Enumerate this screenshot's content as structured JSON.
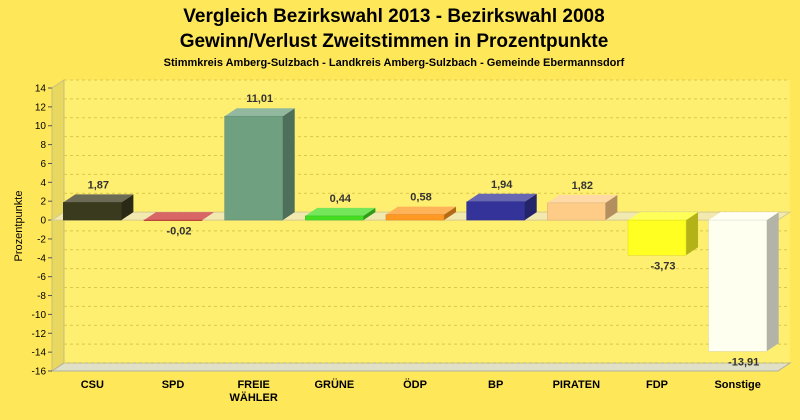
{
  "chart_data": {
    "type": "bar",
    "title": "Vergleich Bezirkswahl 2013 - Bezirkswahl 2008",
    "title_line2": "Gewinn/Verlust Zweitstimmen in Prozentpunkte",
    "subtitle": "Stimmkreis Amberg-Sulzbach - Landkreis Amberg-Sulzbach - Gemeinde Ebermannsdorf",
    "ylabel": "Prozentpunkte",
    "xlabel": "",
    "ylim": [
      -16,
      14
    ],
    "yticks": [
      14,
      12,
      10,
      8,
      6,
      4,
      2,
      0,
      -2,
      -4,
      -6,
      -8,
      -10,
      -12,
      -14,
      -16
    ],
    "grid": true,
    "categories": [
      [
        "CSU"
      ],
      [
        "SPD"
      ],
      [
        "FREIE",
        "WÄHLER"
      ],
      [
        "GRÜNE"
      ],
      [
        "ÖDP"
      ],
      [
        "BP"
      ],
      [
        "PIRATEN"
      ],
      [
        "FDP"
      ],
      [
        "Sonstige"
      ]
    ],
    "values": [
      1.87,
      -0.02,
      11.01,
      0.44,
      0.58,
      1.94,
      1.82,
      -3.73,
      -13.91
    ],
    "value_labels": [
      "1,87",
      "-0,02",
      "11,01",
      "0,44",
      "0,58",
      "1,94",
      "1,82",
      "-3,73",
      "-13,91"
    ],
    "colors": [
      "#3a3a1e",
      "#cc3333",
      "#6fa080",
      "#44dd22",
      "#ff9922",
      "#333399",
      "#ffcc88",
      "#ffff22",
      "#fffff0"
    ]
  }
}
